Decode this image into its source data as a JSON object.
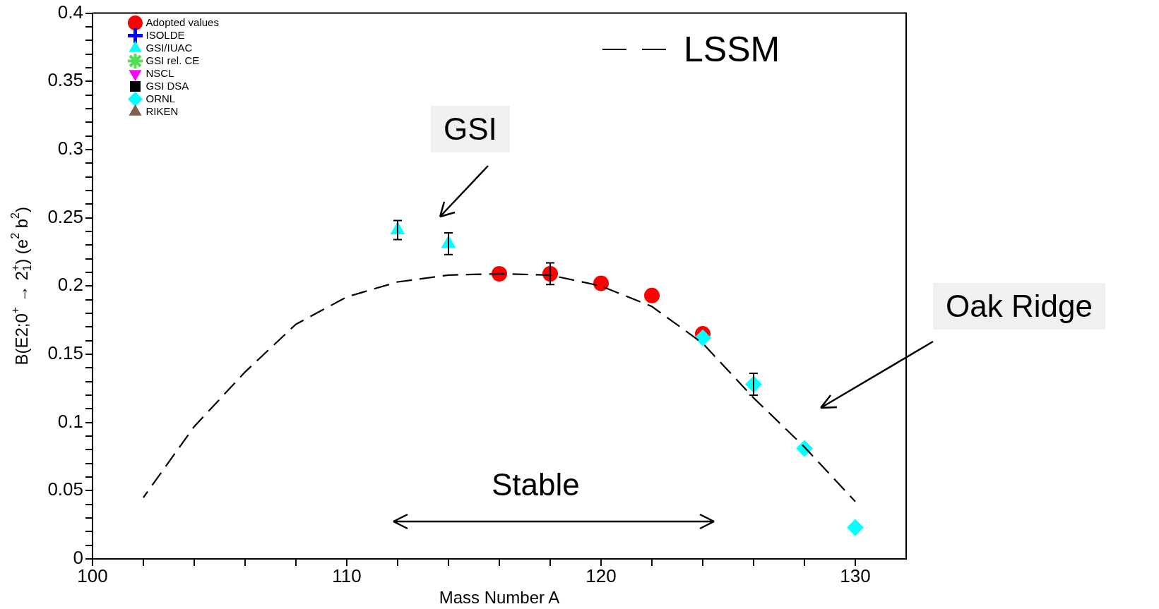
{
  "chart_data": {
    "type": "scatter",
    "xlabel": "Mass Number A",
    "ylabel": "B(E2;0$^{+}$ → 2$_{1}$$^{+}$) (e$^{2}$ b$^{2}$)",
    "xlim": [
      100,
      132
    ],
    "ylim": [
      0,
      0.4
    ],
    "xticks": [
      100,
      {
        "value": 102,
        "label": null
      },
      {
        "value": 104,
        "label": null
      },
      {
        "value": 106,
        "label": null
      },
      {
        "value": 108,
        "label": null
      },
      110,
      {
        "value": 112,
        "label": null
      },
      {
        "value": 114,
        "label": null
      },
      {
        "value": 116,
        "label": null
      },
      {
        "value": 118,
        "label": null
      },
      120,
      {
        "value": 122,
        "label": null
      },
      {
        "value": 124,
        "label": null
      },
      {
        "value": 126,
        "label": null
      },
      {
        "value": 128,
        "label": null
      },
      130
    ],
    "yticks": [
      0,
      {
        "value": 0.01,
        "label": null
      },
      {
        "value": 0.02,
        "label": null
      },
      {
        "value": 0.03,
        "label": null
      },
      {
        "value": 0.04,
        "label": null
      },
      0.05,
      {
        "value": 0.06,
        "label": null
      },
      {
        "value": 0.07,
        "label": null
      },
      {
        "value": 0.08,
        "label": null
      },
      {
        "value": 0.09,
        "label": null
      },
      0.1,
      {
        "value": 0.11,
        "label": null
      },
      {
        "value": 0.12,
        "label": null
      },
      {
        "value": 0.13,
        "label": null
      },
      {
        "value": 0.14,
        "label": null
      },
      0.15,
      {
        "value": 0.16,
        "label": null
      },
      {
        "value": 0.17,
        "label": null
      },
      {
        "value": 0.18,
        "label": null
      },
      {
        "value": 0.19,
        "label": null
      },
      0.2,
      {
        "value": 0.21,
        "label": null
      },
      {
        "value": 0.22,
        "label": null
      },
      {
        "value": 0.23,
        "label": null
      },
      {
        "value": 0.24,
        "label": null
      },
      0.25,
      {
        "value": 0.26,
        "label": null
      },
      {
        "value": 0.27,
        "label": null
      },
      {
        "value": 0.28,
        "label": null
      },
      {
        "value": 0.29,
        "label": null
      },
      0.3,
      {
        "value": 0.31,
        "label": null
      },
      {
        "value": 0.32,
        "label": null
      },
      {
        "value": 0.33,
        "label": null
      },
      {
        "value": 0.34,
        "label": null
      },
      0.35,
      {
        "value": 0.36,
        "label": null
      },
      {
        "value": 0.37,
        "label": null
      },
      {
        "value": 0.38,
        "label": null
      },
      {
        "value": 0.39,
        "label": null
      },
      0.4
    ],
    "grid": false,
    "legend": "top left",
    "series": [
      {
        "name": "LSSM",
        "type": "line",
        "line_style": "dashed",
        "marker": "none",
        "color": "#000000",
        "x": [
          102,
          104,
          106,
          108,
          110,
          112,
          114,
          116,
          118,
          120,
          122,
          124,
          126,
          128,
          130
        ],
        "values": [
          0.045,
          0.097,
          0.137,
          0.172,
          0.192,
          0.203,
          0.208,
          0.209,
          0.208,
          0.2,
          0.185,
          0.158,
          0.118,
          0.082,
          0.042
        ]
      },
      {
        "name": "Adopted values",
        "marker": "circle",
        "color": "#ff0000",
        "x": [
          116,
          118,
          120,
          122,
          124
        ],
        "values": [
          0.209,
          0.209,
          0.202,
          0.193,
          0.165
        ],
        "errors": [
          null,
          0.008,
          null,
          null,
          null
        ]
      },
      {
        "name": "ISOLDE",
        "marker": "cross",
        "color": "#0000ff"
      },
      {
        "name": "GSI/IUAC",
        "marker": "triangle",
        "color": "#00ffff",
        "x": [
          112,
          114
        ],
        "values": [
          0.241,
          0.231
        ],
        "errors": [
          0.007,
          0.008
        ]
      },
      {
        "name": "GSI rel. CE",
        "marker": "star",
        "color": "#55dd55"
      },
      {
        "name": "NSCL",
        "marker": "triangle-down",
        "color": "#ff00ff"
      },
      {
        "name": "GSI DSA",
        "marker": "square",
        "color": "#000000"
      },
      {
        "name": "ORNL",
        "marker": "diamond",
        "color": "#00ffff",
        "x": [
          124,
          126,
          128,
          130
        ],
        "values": [
          0.162,
          0.128,
          0.081,
          0.023
        ],
        "errors": [
          null,
          0.008,
          null,
          null
        ]
      },
      {
        "name": "RIKEN",
        "marker": "triangle",
        "color": "#806050"
      }
    ],
    "annotations": [
      "GSI",
      "Oak Ridge",
      "Stable"
    ]
  }
}
